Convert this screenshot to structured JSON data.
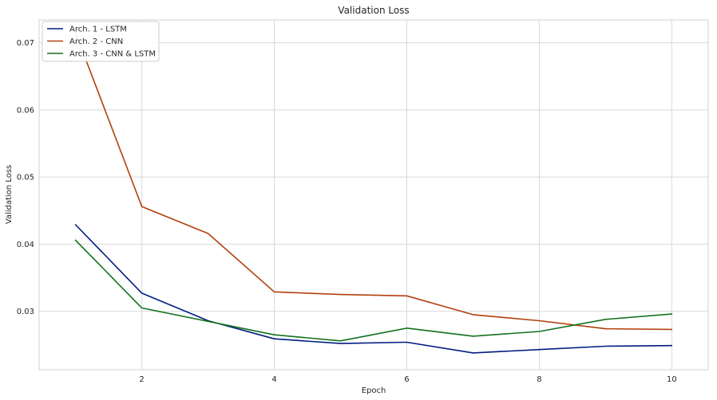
{
  "chart_data": {
    "type": "line",
    "title": "Validation Loss",
    "xlabel": "Epoch",
    "ylabel": "Validation Loss",
    "x": [
      1,
      2,
      3,
      4,
      5,
      6,
      7,
      8,
      9,
      10
    ],
    "xlim": [
      0.45,
      10.55
    ],
    "ylim": [
      0.0213,
      0.0734
    ],
    "x_ticks": [
      2,
      4,
      6,
      8,
      10
    ],
    "x_tick_labels": [
      "2",
      "4",
      "6",
      "8",
      "10"
    ],
    "y_ticks": [
      0.03,
      0.04,
      0.05,
      0.06,
      0.07
    ],
    "y_tick_labels": [
      "0.03",
      "0.04",
      "0.05",
      "0.06",
      "0.07"
    ],
    "grid": true,
    "legend_position": "top-left",
    "series": [
      {
        "name": "Arch. 1 - LSTM",
        "color": "#001c7f",
        "values": [
          0.0429,
          0.0327,
          0.0286,
          0.0259,
          0.0252,
          0.0254,
          0.0238,
          0.0243,
          0.0248,
          0.0249
        ]
      },
      {
        "name": "Arch. 2 - CNN",
        "color": "#b1400d",
        "values": [
          0.0715,
          0.0456,
          0.0416,
          0.0329,
          0.0325,
          0.0323,
          0.0295,
          0.0286,
          0.0274,
          0.0273
        ]
      },
      {
        "name": "Arch. 3 - CNN & LSTM",
        "color": "#12711c",
        "values": [
          0.0406,
          0.0305,
          0.0285,
          0.0265,
          0.0256,
          0.0275,
          0.0263,
          0.027,
          0.0288,
          0.0296
        ]
      }
    ]
  }
}
